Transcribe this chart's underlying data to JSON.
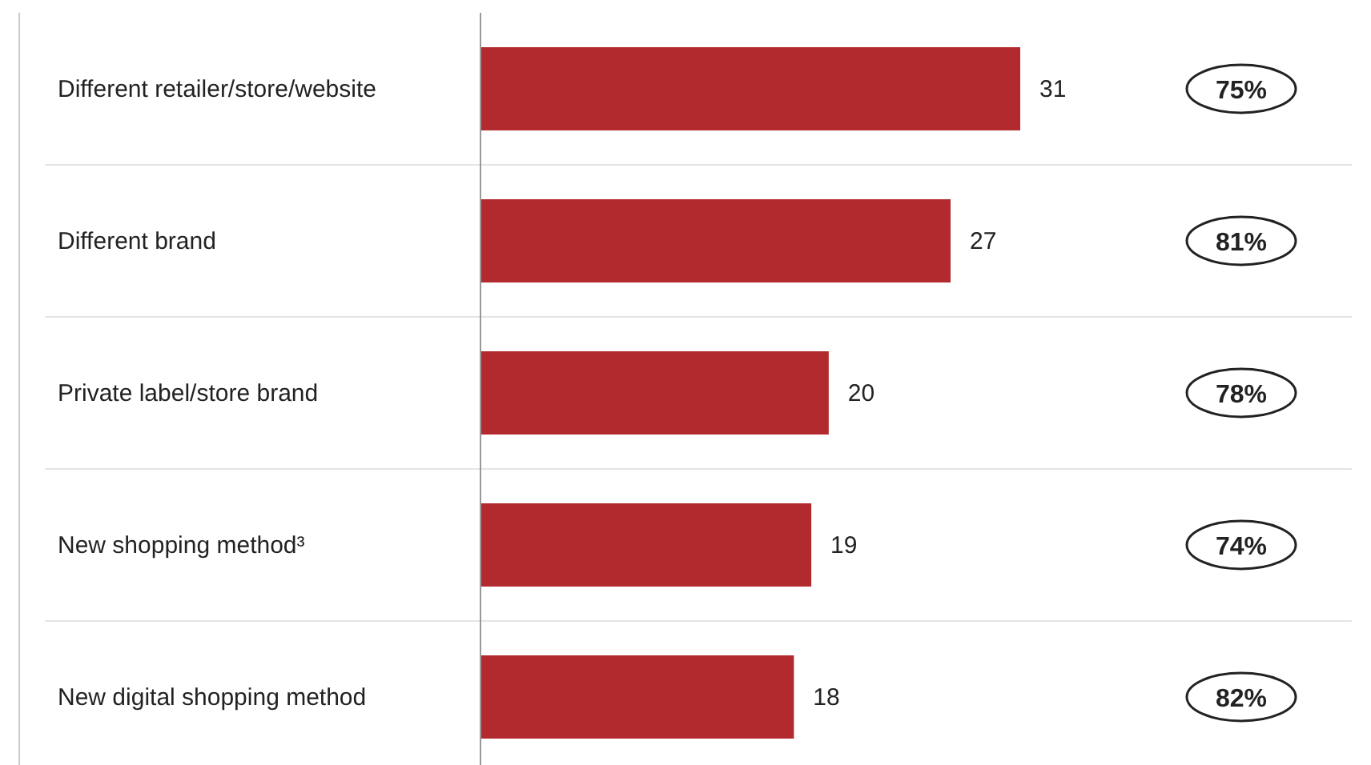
{
  "chart_data": {
    "type": "bar",
    "orientation": "horizontal",
    "categories": [
      "Different retailer/store/website",
      "Different brand",
      "Private label/store brand",
      "New shopping method³",
      "New digital shopping method"
    ],
    "values": [
      31,
      27,
      20,
      19,
      18
    ],
    "color": "#b22a2e",
    "data_labels": true,
    "annotations": [
      "75%",
      "81%",
      "78%",
      "74%",
      "82%"
    ]
  }
}
